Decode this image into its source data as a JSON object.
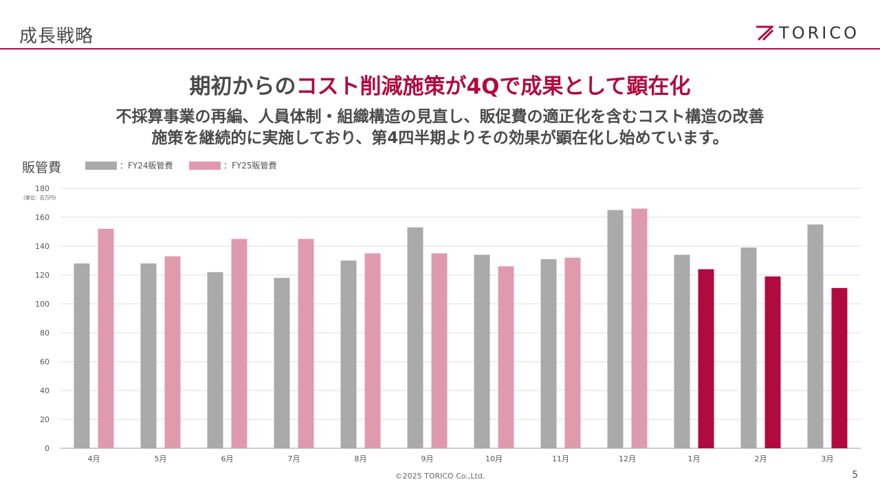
{
  "header": {
    "section_title": "成長戦略",
    "logo_text": "TORICO"
  },
  "headline": {
    "part1": "期初からの",
    "accent": "コスト削減施策が4Qで成果として顕在化"
  },
  "subtext": {
    "line1": "不採算事業の再編、人員体制・組織構造の見直し、販促費の適正化を含むコスト構造の改善",
    "line2": "施策を継続的に実施しており、第4四半期よりその効果が顕在化し始めています。"
  },
  "chart_label": "販管費",
  "unit_label": "(単位：百万円)",
  "legend": {
    "fy24": "：FY24販管費",
    "fy25": "：FY25販管費"
  },
  "colors": {
    "accent": "#b10a3f",
    "fy24": "#aaaaaa",
    "fy25": "#e09aae",
    "fy25_highlight": "#b10a3f",
    "rule": "#b10a3f"
  },
  "chart_data": {
    "type": "bar",
    "title": "販管費",
    "ylabel": "(単位：百万円)",
    "ylim": [
      0,
      180
    ],
    "yticks": [
      0,
      20,
      40,
      60,
      80,
      100,
      120,
      140,
      160,
      180
    ],
    "grid": true,
    "legend_position": "top-left",
    "categories": [
      "4月",
      "5月",
      "6月",
      "7月",
      "8月",
      "9月",
      "10月",
      "11月",
      "12月",
      "1月",
      "2月",
      "3月"
    ],
    "series": [
      {
        "name": "FY24販管費",
        "values": [
          128,
          128,
          122,
          118,
          130,
          153,
          134,
          131,
          165,
          134,
          139,
          155
        ]
      },
      {
        "name": "FY25販管費",
        "values": [
          152,
          133,
          145,
          145,
          135,
          135,
          126,
          132,
          166,
          124,
          119,
          111
        ],
        "highlight_from_index": 9
      }
    ]
  },
  "footer": {
    "copyright": "©2025 TORICO Co.,Ltd.",
    "page": "5"
  }
}
